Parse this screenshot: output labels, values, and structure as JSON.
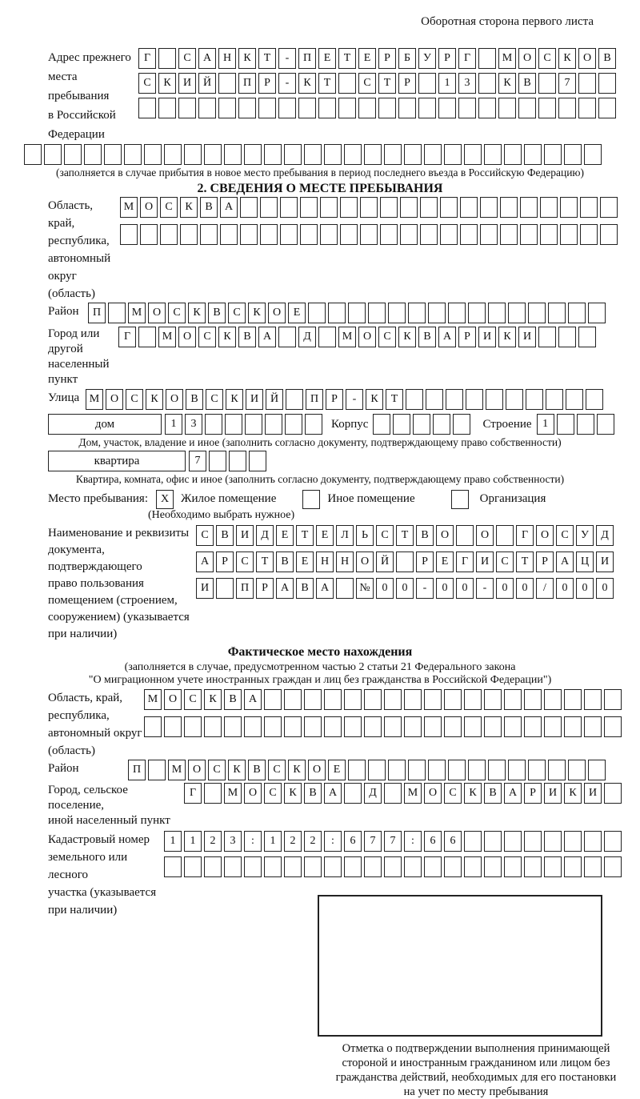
{
  "header": {
    "note": "Оборотная сторона первого листа"
  },
  "prev_address": {
    "label_lines": [
      "Адрес прежнего",
      "места пребывания",
      "в Российской",
      "Федерации"
    ],
    "rows": [
      {
        "text": "Г САНКТ-ПЕТЕРБУРГ МОСКОВ",
        "count": 24
      },
      {
        "text": "СКИЙ ПР-КТ СТР 13 КВ 7",
        "count": 24
      },
      {
        "text": "",
        "count": 24
      },
      {
        "text": "",
        "count": 29
      }
    ],
    "note": "(заполняется в случае прибытия в новое место пребывания в период последнего въезда в Российскую Федерацию)"
  },
  "section2": {
    "title": "2. СВЕДЕНИЯ О МЕСТЕ ПРЕБЫВАНИЯ",
    "region": {
      "label_lines": [
        "Область, край,",
        "республика,",
        "автономный",
        "округ (область)"
      ],
      "rows": [
        {
          "text": "МОСКВА",
          "count": 25
        },
        {
          "text": "",
          "count": 25
        }
      ]
    },
    "district": {
      "label": "Район",
      "row": {
        "text": "П МОСКВСКОЕ",
        "count": 26
      }
    },
    "city": {
      "label_lines": [
        "Город или другой",
        "населенный пункт"
      ],
      "row": {
        "text": "Г МОСКВА Д МОСКВАРИКИ",
        "count": 24
      }
    },
    "street": {
      "label": "Улица",
      "row": {
        "text": "МОСКОВСКИЙ ПР-КТ",
        "count": 26
      }
    },
    "house": {
      "box_label": "дом",
      "number": {
        "text": "13",
        "count": 8
      },
      "korpus_label": "Корпус",
      "korpus": {
        "text": "",
        "count": 5
      },
      "stroenie_label": "Строение",
      "stroenie": {
        "text": "1",
        "count": 4
      }
    },
    "house_note": "Дом, участок, владение и иное (заполнить согласно документу, подтверждающему право собственности)",
    "apartment": {
      "box_label": "квартира",
      "number": {
        "text": "7",
        "count": 4
      }
    },
    "apartment_note": "Квартира, комната, офис и иное (заполнить согласно документу, подтверждающему право собственности)",
    "stay": {
      "label": "Место пребывания:",
      "options": [
        {
          "label": "Жилое помещение",
          "mark": "X"
        },
        {
          "label": "Иное помещение",
          "mark": ""
        },
        {
          "label": "Организация",
          "mark": ""
        }
      ],
      "note": "(Необходимо выбрать нужное)"
    },
    "doc": {
      "label_lines": [
        "Наименование и реквизиты",
        "документа, подтверждающего",
        "право пользования",
        "помещением (строением,",
        "сооружением) (указывается",
        "при наличии)"
      ],
      "rows": [
        {
          "text": "СВИДЕТЕЛЬСТВО О ГОСУД",
          "count": 21
        },
        {
          "text": "АРСТВЕННОЙ РЕГИСТРАЦИ",
          "count": 21
        },
        {
          "text": "И ПРАВА №00-00-00/000",
          "count": 21
        }
      ]
    }
  },
  "actual_location": {
    "title": "Фактическое место нахождения",
    "note_lines": [
      "(заполняется в случае, предусмотренном частью 2 статьи 21 Федерального закона",
      "\"О миграционном учете иностранных граждан и лиц без гражданства в Российской Федерации\")"
    ],
    "region": {
      "label_lines": [
        "Область, край,",
        "республика,",
        "автономный округ",
        "(область)"
      ],
      "rows": [
        {
          "text": "МОСКВА",
          "count": 24
        },
        {
          "text": "",
          "count": 24
        }
      ]
    },
    "district": {
      "label": "Район",
      "row": {
        "text": "П МОСКВСКОЕ",
        "count": 24
      }
    },
    "city": {
      "label_lines": [
        "Город, сельское поселение,",
        "иной населенный пункт"
      ],
      "row": {
        "text": "Г МОСКВА Д МОСКВАРИКИ",
        "count": 22
      }
    },
    "cadastre": {
      "label_lines": [
        "Кадастровый номер",
        "земельного или лесного",
        "участка (указывается",
        "при наличии)"
      ],
      "rows": [
        {
          "text": "1123:122:677:66",
          "count": 23
        },
        {
          "text": "",
          "count": 23
        }
      ]
    },
    "stamp_note_lines": [
      "Отметка о подтверждении выполнения принимающей",
      "стороной и иностранным гражданином или лицом без",
      "гражданства действий, необходимых для его постановки",
      "на учет по месту пребывания"
    ]
  }
}
